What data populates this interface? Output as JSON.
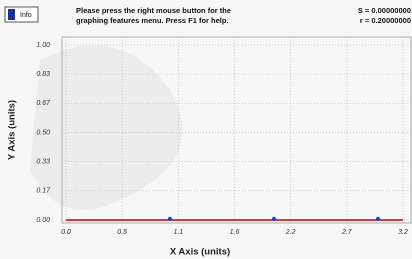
{
  "info_button": "Info",
  "message": [
    "Please press the right mouse button for the",
    "graphing features menu.  Press F1 for help."
  ],
  "stats": [
    "S = 0.00000000",
    "r = 0.20000000"
  ],
  "chart_data": {
    "type": "scatter",
    "x_label": "X Axis (units)",
    "y_label": "Y Axis (units)",
    "x": [
      1.0,
      2.0,
      3.0
    ],
    "values": [
      0,
      0,
      0
    ],
    "color": "#2a3fc0",
    "fit_line": {
      "x": [
        0,
        3.24
      ],
      "values": [
        0,
        0
      ],
      "color": "#c00000"
    },
    "xlim": [
      0,
      3.24
    ],
    "xticks": [
      {
        "value": 0,
        "label": "0.0"
      },
      {
        "value": 0.54,
        "label": "0.5"
      },
      {
        "value": 1.08,
        "label": "1.1"
      },
      {
        "value": 1.62,
        "label": "1.6"
      },
      {
        "value": 2.16,
        "label": "2.2"
      },
      {
        "value": 2.7,
        "label": "2.7"
      },
      {
        "value": 3.24,
        "label": "3.2"
      }
    ],
    "ylim": [
      0,
      1
    ],
    "yticks": [
      {
        "value": 0,
        "label": "0.00"
      },
      {
        "value": 0.1667,
        "label": "0.17"
      },
      {
        "value": 0.3333,
        "label": "0.33"
      },
      {
        "value": 0.5,
        "label": "0.50"
      },
      {
        "value": 0.6667,
        "label": "0.67"
      },
      {
        "value": 0.8333,
        "label": "0.83"
      },
      {
        "value": 1,
        "label": "1.00"
      }
    ],
    "grid": true
  }
}
